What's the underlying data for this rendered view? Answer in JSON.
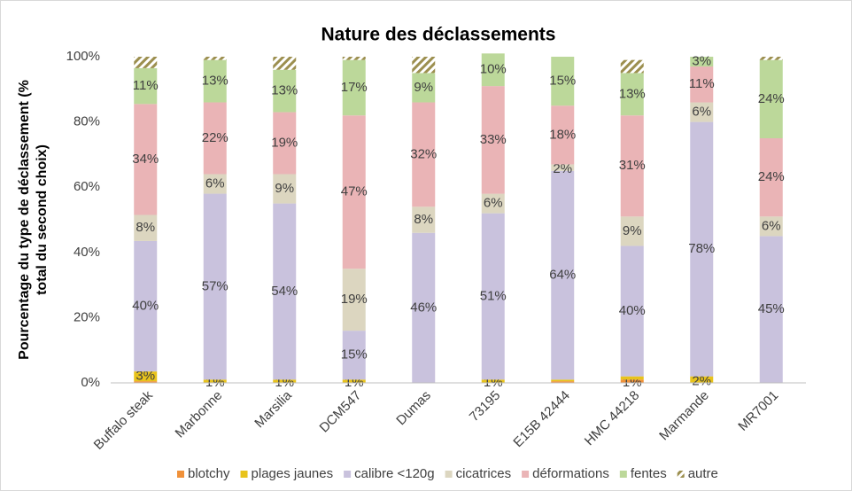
{
  "chart_data": {
    "type": "stacked_bar",
    "title": "Nature des déclassements",
    "y_label": "Pourcentage du type de déclassement (% total du second choix)",
    "categories": [
      "Buffalo steak",
      "Marbonne",
      "Marsilia",
      "DCM547",
      "Dumas",
      "73195",
      "E15B 42444",
      "HMC 44218",
      "Marmande",
      "MR7001"
    ],
    "ylim": [
      0,
      100
    ],
    "yticks": [
      {
        "value": 0,
        "label": "0%"
      },
      {
        "value": 20,
        "label": "20%"
      },
      {
        "value": 40,
        "label": "40%"
      },
      {
        "value": 60,
        "label": "60%"
      },
      {
        "value": 80,
        "label": "80%"
      },
      {
        "value": 100,
        "label": "100%"
      }
    ],
    "grid": false,
    "legend": "bottom",
    "series": [
      {
        "name": "blotchy",
        "color": "#f0913a",
        "values": [
          0.5,
          0,
          0,
          0,
          0,
          0,
          0.5,
          1,
          0,
          0
        ],
        "value_labels": [
          null,
          null,
          null,
          null,
          null,
          null,
          null,
          "1%",
          null,
          null
        ]
      },
      {
        "name": "plages jaunes",
        "color": "#e8c31c",
        "values": [
          3,
          1,
          1,
          1,
          0,
          1,
          0.5,
          1,
          2,
          0
        ],
        "value_labels": [
          "3%",
          "1%",
          "1%",
          "1%",
          null,
          "1%",
          null,
          null,
          "2%",
          null
        ]
      },
      {
        "name": "calibre <120g",
        "color": "#c9c2dd",
        "values": [
          40,
          57,
          54,
          15,
          46,
          51,
          64,
          40,
          78,
          45
        ],
        "value_labels": [
          "40%",
          "57%",
          "54%",
          "15%",
          "46%",
          "51%",
          "64%",
          "40%",
          "78%",
          "45%"
        ]
      },
      {
        "name": "cicatrices",
        "color": "#dcd6c0",
        "values": [
          8,
          6,
          9,
          19,
          8,
          6,
          2,
          9,
          6,
          6
        ],
        "value_labels": [
          "8%",
          "6%",
          "9%",
          "19%",
          "8%",
          "6%",
          "2%",
          "9%",
          "6%",
          "6%"
        ]
      },
      {
        "name": "déformations",
        "color": "#eab4b6",
        "values": [
          34,
          22,
          19,
          47,
          32,
          33,
          18,
          31,
          11,
          24
        ],
        "value_labels": [
          "34%",
          "22%",
          "19%",
          "47%",
          "32%",
          "33%",
          "18%",
          "31%",
          "11%",
          "24%"
        ]
      },
      {
        "name": "fentes",
        "color": "#bcd89a",
        "values": [
          11,
          13,
          13,
          17,
          9,
          10,
          15,
          13,
          3,
          24
        ],
        "value_labels": [
          "11%",
          "13%",
          "13%",
          "17%",
          "9%",
          "10%",
          "15%",
          "13%",
          "3%",
          "24%"
        ]
      },
      {
        "name": "autre",
        "color": "#9c8f4f",
        "hatch": true,
        "values": [
          3.5,
          1,
          4,
          1,
          5,
          0,
          0,
          4,
          0,
          1
        ],
        "value_labels": [
          null,
          null,
          null,
          null,
          null,
          null,
          null,
          null,
          null,
          null
        ]
      }
    ]
  }
}
